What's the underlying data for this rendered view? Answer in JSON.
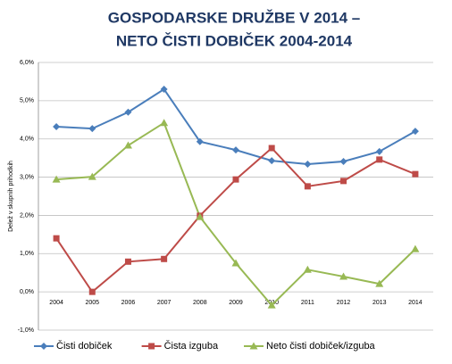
{
  "chart_data": {
    "type": "line",
    "title": [
      "GOSPODARSKE DRUŽBE V 2014 –",
      "NETO ČISTI DOBIČEK 2004-2014"
    ],
    "y_label": "Delež v skupnih prihodkih",
    "categories": [
      "2004",
      "2005",
      "2006",
      "2007",
      "2008",
      "2009",
      "2010",
      "2011",
      "2012",
      "2013",
      "2014"
    ],
    "series": [
      {
        "name": "Čisti dobiček",
        "color": "#4a7ebb",
        "marker": "diamond",
        "values": [
          4.32,
          4.27,
          4.7,
          5.3,
          3.93,
          3.71,
          3.43,
          3.34,
          3.41,
          3.67,
          4.2
        ]
      },
      {
        "name": "Čista izguba",
        "color": "#be4b48",
        "marker": "square",
        "values": [
          1.4,
          0.0,
          0.79,
          0.86,
          1.99,
          2.94,
          3.76,
          2.76,
          2.9,
          3.46,
          3.08
        ]
      },
      {
        "name": "Neto čisti dobiček/izguba",
        "color": "#98b954",
        "marker": "triangle",
        "values": [
          2.94,
          3.01,
          3.83,
          4.42,
          1.96,
          0.75,
          -0.35,
          0.58,
          0.4,
          0.21,
          1.12
        ]
      }
    ],
    "ylim": [
      -1,
      6
    ],
    "yticks": [
      {
        "value": -1,
        "label": "-1,0%"
      },
      {
        "value": 0,
        "label": "0,0%"
      },
      {
        "value": 1,
        "label": "1,0%"
      },
      {
        "value": 2,
        "label": "2,0%"
      },
      {
        "value": 3,
        "label": "3,0%"
      },
      {
        "value": 4,
        "label": "4,0%"
      },
      {
        "value": 5,
        "label": "5,0%"
      },
      {
        "value": 6,
        "label": "6,0%"
      }
    ],
    "grid": true,
    "legend": "bottom"
  }
}
